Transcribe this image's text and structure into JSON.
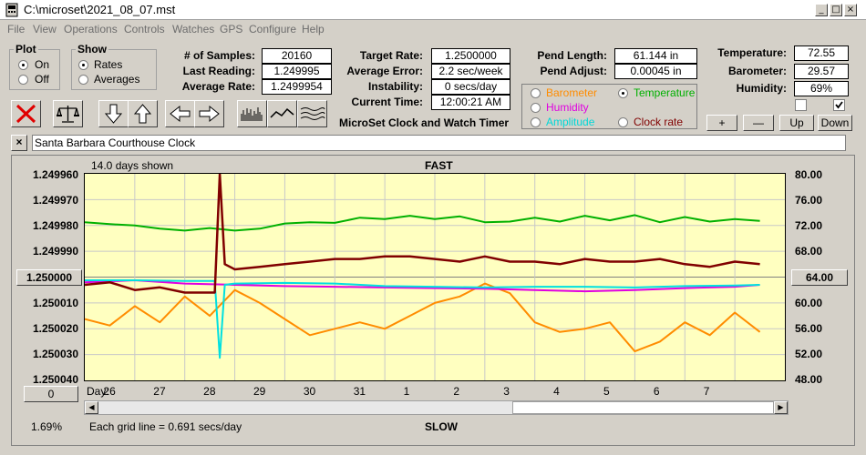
{
  "window": {
    "title": "C:\\microset\\2021_08_07.mst",
    "minimize_glyph": "_",
    "maximize_glyph": "□",
    "close_glyph": "×"
  },
  "menu": [
    "File",
    "View",
    "Operations",
    "Controls",
    "Watches",
    "GPS",
    "Configure",
    "Help"
  ],
  "plot_group": {
    "legend": "Plot",
    "on": "On",
    "off": "Off",
    "selected": "On"
  },
  "show_group": {
    "legend": "Show",
    "rates": "Rates",
    "averages": "Averages",
    "selected": "Rates"
  },
  "stats": {
    "samples_label": "# of Samples:",
    "samples": "20160",
    "last_reading_label": "Last Reading:",
    "last_reading": "1.249995",
    "average_rate_label": "Average Rate:",
    "average_rate": "1.2499954",
    "target_rate_label": "Target Rate:",
    "target_rate": "1.2500000",
    "average_error_label": "Average Error:",
    "average_error": "2.2 sec/week",
    "instability_label": "Instability:",
    "instability": "0 secs/day",
    "current_time_label": "Current Time:",
    "current_time": "12:00:21 AM",
    "pend_length_label": "Pend Length:",
    "pend_length": "61.144 in",
    "pend_adjust_label": "Pend Adjust:",
    "pend_adjust": "0.00045 in",
    "temperature_label": "Temperature:",
    "temperature": "72.55",
    "barometer_label": "Barometer:",
    "barometer": "29.57",
    "humidity_label": "Humidity:",
    "humidity": "69%"
  },
  "app_title": "MicroSet Clock and Watch Timer",
  "series_select": {
    "barometer": "Barometer",
    "temperature": "Temperature",
    "humidity": "Humidity",
    "amplitude": "Amplitude",
    "clock_rate": "Clock rate",
    "selected": "Temperature"
  },
  "buttons": {
    "plus": "+",
    "minus": "—",
    "up": "Up",
    "down": "Down",
    "clear": "×",
    "left_value": "1.250000",
    "right_value": "64.00",
    "offset_value": "0"
  },
  "clock_name": "Santa Barbara Courthouse Clock",
  "colors": {
    "temperature": "#00b000",
    "rate": "#800000",
    "barometer": "#ff8c00",
    "humidity": "#e000e0",
    "amplitude": "#00e0e0",
    "plot_bg": "#ffffc0"
  },
  "chart_data": {
    "type": "line",
    "title": "FAST",
    "bottom_label": "SLOW",
    "span_label": "14.0 days shown",
    "grid_note": "Each grid line = 0.691 secs/day",
    "zoom": "1.69%",
    "x_axis_label": "Day:",
    "x_ticks": [
      "26",
      "27",
      "28",
      "29",
      "30",
      "31",
      "1",
      "2",
      "3",
      "4",
      "5",
      "6",
      "7"
    ],
    "x_range_days": [
      0,
      14
    ],
    "y_left_ticks": [
      "1.249960",
      "1.249970",
      "1.249980",
      "1.249990",
      "1.250000",
      "1.250010",
      "1.250020",
      "1.250030",
      "1.250040"
    ],
    "y_left_range": [
      1.24996,
      1.25004
    ],
    "y_left_inverted": true,
    "y_right_ticks": [
      "80.00",
      "76.00",
      "72.00",
      "68.00",
      "64.00",
      "60.00",
      "56.00",
      "52.00",
      "48.00"
    ],
    "y_right_range": [
      48,
      80
    ],
    "series": [
      {
        "name": "Temperature",
        "axis": "right",
        "x": [
          0,
          0.5,
          1,
          1.5,
          2,
          2.5,
          3,
          3.5,
          4,
          4.5,
          5,
          5.5,
          6,
          6.5,
          7,
          7.5,
          8,
          8.5,
          9,
          9.5,
          10,
          10.5,
          11,
          11.5,
          12,
          12.5,
          13,
          13.5
        ],
        "y": [
          72.5,
          72.2,
          72,
          71.5,
          71.2,
          71.6,
          71.2,
          71.5,
          72.3,
          72.5,
          72.4,
          73.2,
          73,
          73.5,
          73,
          73.4,
          72.5,
          72.6,
          73.2,
          72.6,
          73.5,
          72.8,
          73.6,
          72.5,
          73.3,
          72.6,
          73,
          72.7
        ]
      },
      {
        "name": "Clock rate",
        "axis": "left",
        "x": [
          0,
          0.5,
          1,
          1.5,
          2,
          2.6,
          2.7,
          2.8,
          3,
          3.5,
          4,
          4.5,
          5,
          5.5,
          6,
          6.5,
          7,
          7.5,
          8,
          8.5,
          9,
          9.5,
          10,
          10.5,
          11,
          11.5,
          12,
          12.5,
          13,
          13.5
        ],
        "y": [
          1.250003,
          1.250002,
          1.250005,
          1.250004,
          1.250006,
          1.250006,
          1.24996,
          1.249995,
          1.249997,
          1.249996,
          1.249995,
          1.249994,
          1.249993,
          1.249993,
          1.249992,
          1.249992,
          1.249993,
          1.249994,
          1.249992,
          1.249994,
          1.249994,
          1.249995,
          1.249993,
          1.249994,
          1.249994,
          1.249993,
          1.249995,
          1.249996,
          1.249994,
          1.249995
        ]
      },
      {
        "name": "Barometer",
        "axis": "right",
        "x": [
          0,
          0.5,
          1,
          1.5,
          2,
          2.5,
          3,
          3.5,
          4,
          4.5,
          5,
          5.5,
          6,
          6.5,
          7,
          7.5,
          8,
          8.5,
          9,
          9.5,
          10,
          10.5,
          11,
          11.5,
          12,
          12.5,
          13,
          13.5
        ],
        "y": [
          57.5,
          56.5,
          59.5,
          57,
          61,
          58,
          62,
          60,
          57.5,
          55,
          56,
          57,
          56,
          58,
          60,
          61,
          63,
          61.5,
          57,
          55.5,
          56,
          57,
          52.5,
          54,
          57,
          55,
          58.5,
          55.5
        ]
      },
      {
        "name": "Humidity",
        "axis": "right",
        "x": [
          0,
          1,
          2,
          3,
          4,
          5,
          6,
          7,
          8,
          9,
          10,
          11,
          12,
          13,
          13.5
        ],
        "y": [
          63.2,
          63.5,
          63,
          62.8,
          62.6,
          62.5,
          62.4,
          62.3,
          62.2,
          62,
          61.8,
          62,
          62.3,
          62.5,
          62.8
        ]
      },
      {
        "name": "Amplitude",
        "axis": "right",
        "x": [
          0,
          1,
          2,
          2.6,
          2.7,
          2.8,
          3,
          4,
          5,
          6,
          7,
          8,
          9,
          10,
          11,
          12,
          13,
          13.5
        ],
        "y": [
          63.5,
          63.5,
          63.4,
          63.4,
          51.5,
          62.8,
          63,
          63.1,
          63,
          62.6,
          62.5,
          62.4,
          62.5,
          62.5,
          62.4,
          62.6,
          62.7,
          62.8
        ]
      }
    ]
  }
}
